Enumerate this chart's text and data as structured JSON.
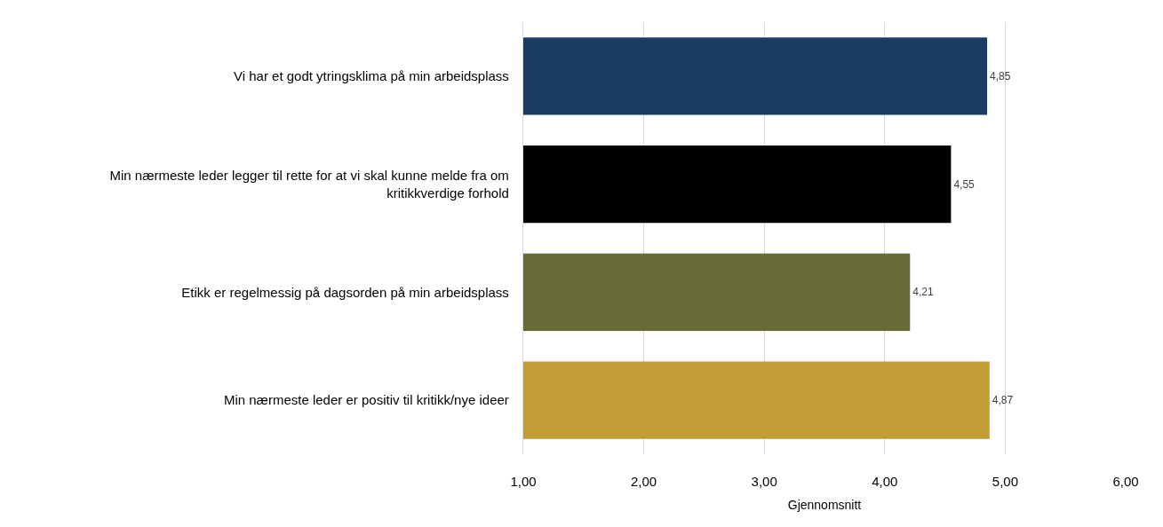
{
  "chart_data": {
    "type": "bar",
    "orientation": "horizontal",
    "categories": [
      "Vi har et godt ytringsklima på min arbeidsplass",
      "Min nærmeste leder legger til rette for at vi skal kunne melde fra om kritikkverdige forhold",
      "Etikk er regelmessig på dagsorden på min arbeidsplass",
      "Min nærmeste leder er positiv til kritikk/nye ideer"
    ],
    "values": [
      4.85,
      4.55,
      4.21,
      4.87
    ],
    "colors": [
      "#1a3c64",
      "#000000",
      "#686b36",
      "#c49c36"
    ],
    "value_labels": [
      "4,85",
      "4,55",
      "4,21",
      "4,87"
    ],
    "xlabel": "Gjennomsnitt",
    "xlim": [
      1,
      6
    ],
    "xticks": [
      {
        "value": 1,
        "label": "1,00"
      },
      {
        "value": 2,
        "label": "2,00"
      },
      {
        "value": 3,
        "label": "3,00"
      },
      {
        "value": 4,
        "label": "4,00"
      },
      {
        "value": 5,
        "label": "5,00"
      },
      {
        "value": 6,
        "label": "6,00"
      }
    ],
    "grid": "x"
  }
}
